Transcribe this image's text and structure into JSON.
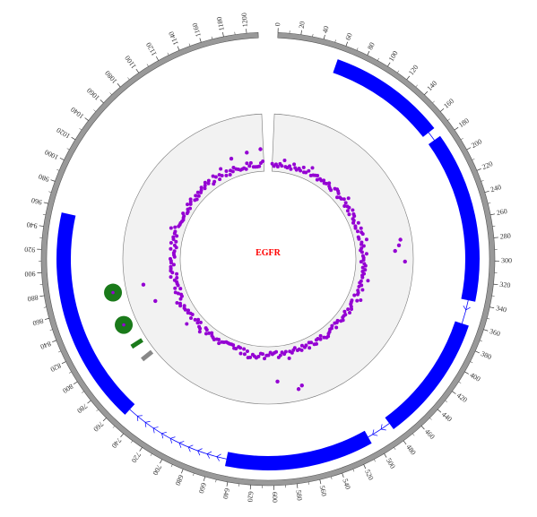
{
  "gene": {
    "label": "EGFR",
    "color": "#ff0000"
  },
  "track_colors": {
    "ideogram": "#999999",
    "ideogram_edge": "#555555",
    "domain": "#0000ff",
    "intron": "#0000ff",
    "scatter_band": "#f2f2f2",
    "scatter_points": "#9400d3",
    "circle_markers": "#1a7a1a",
    "circle_center": "#9400d3",
    "bar_green": "#1a7a1a",
    "bar_gray": "#888888"
  },
  "axis": {
    "min": 0,
    "max": 1210,
    "gap_degrees": 5,
    "tick_step": 20,
    "tick_labels": [
      "0",
      "20",
      "40",
      "60",
      "80",
      "100",
      "120",
      "140",
      "160",
      "180",
      "200",
      "220",
      "240",
      "260",
      "280",
      "300",
      "320",
      "340",
      "360",
      "380",
      "400",
      "420",
      "440",
      "460",
      "480",
      "500",
      "520",
      "540",
      "560",
      "580",
      "600",
      "620",
      "640",
      "660",
      "680",
      "700",
      "720",
      "740",
      "760",
      "780",
      "800",
      "820",
      "840",
      "860",
      "880",
      "900",
      "920",
      "940",
      "960",
      "980",
      "1000",
      "1020",
      "1040",
      "1060",
      "1080",
      "1100",
      "1120",
      "1140",
      "1160",
      "1180",
      "1200"
    ]
  },
  "chart_data": {
    "type": "circos",
    "center_label": "EGFR",
    "domains": [
      {
        "start": 57,
        "end": 168
      },
      {
        "start": 177,
        "end": 338
      },
      {
        "start": 361,
        "end": 481
      },
      {
        "start": 505,
        "end": 645
      },
      {
        "start": 750,
        "end": 955
      }
    ],
    "introns": [
      {
        "start": 168,
        "end": 177
      },
      {
        "start": 338,
        "end": 361
      },
      {
        "start": 481,
        "end": 505
      },
      {
        "start": 645,
        "end": 750
      }
    ],
    "circle_markers": [
      {
        "position": 870,
        "level": 0.45
      },
      {
        "position": 828,
        "level": 0.45
      }
    ],
    "bars": [
      {
        "position": 800,
        "level": 0.4,
        "kind": "green"
      },
      {
        "position": 780,
        "level": 0.38,
        "kind": "gray"
      }
    ],
    "scatter_outliers": [
      {
        "position": 278,
        "value": 0.78
      },
      {
        "position": 286,
        "value": 0.7
      },
      {
        "position": 302,
        "value": 0.88
      },
      {
        "position": 270,
        "value": 0.82
      },
      {
        "position": 590,
        "value": 0.62
      },
      {
        "position": 560,
        "value": 0.82
      },
      {
        "position": 554,
        "value": 0.77
      },
      {
        "position": 872,
        "value": 0.7
      },
      {
        "position": 842,
        "value": 0.57
      },
      {
        "position": 1205,
        "value": 0.38
      },
      {
        "position": 1180,
        "value": 0.35
      },
      {
        "position": 1150,
        "value": 0.32
      }
    ]
  }
}
